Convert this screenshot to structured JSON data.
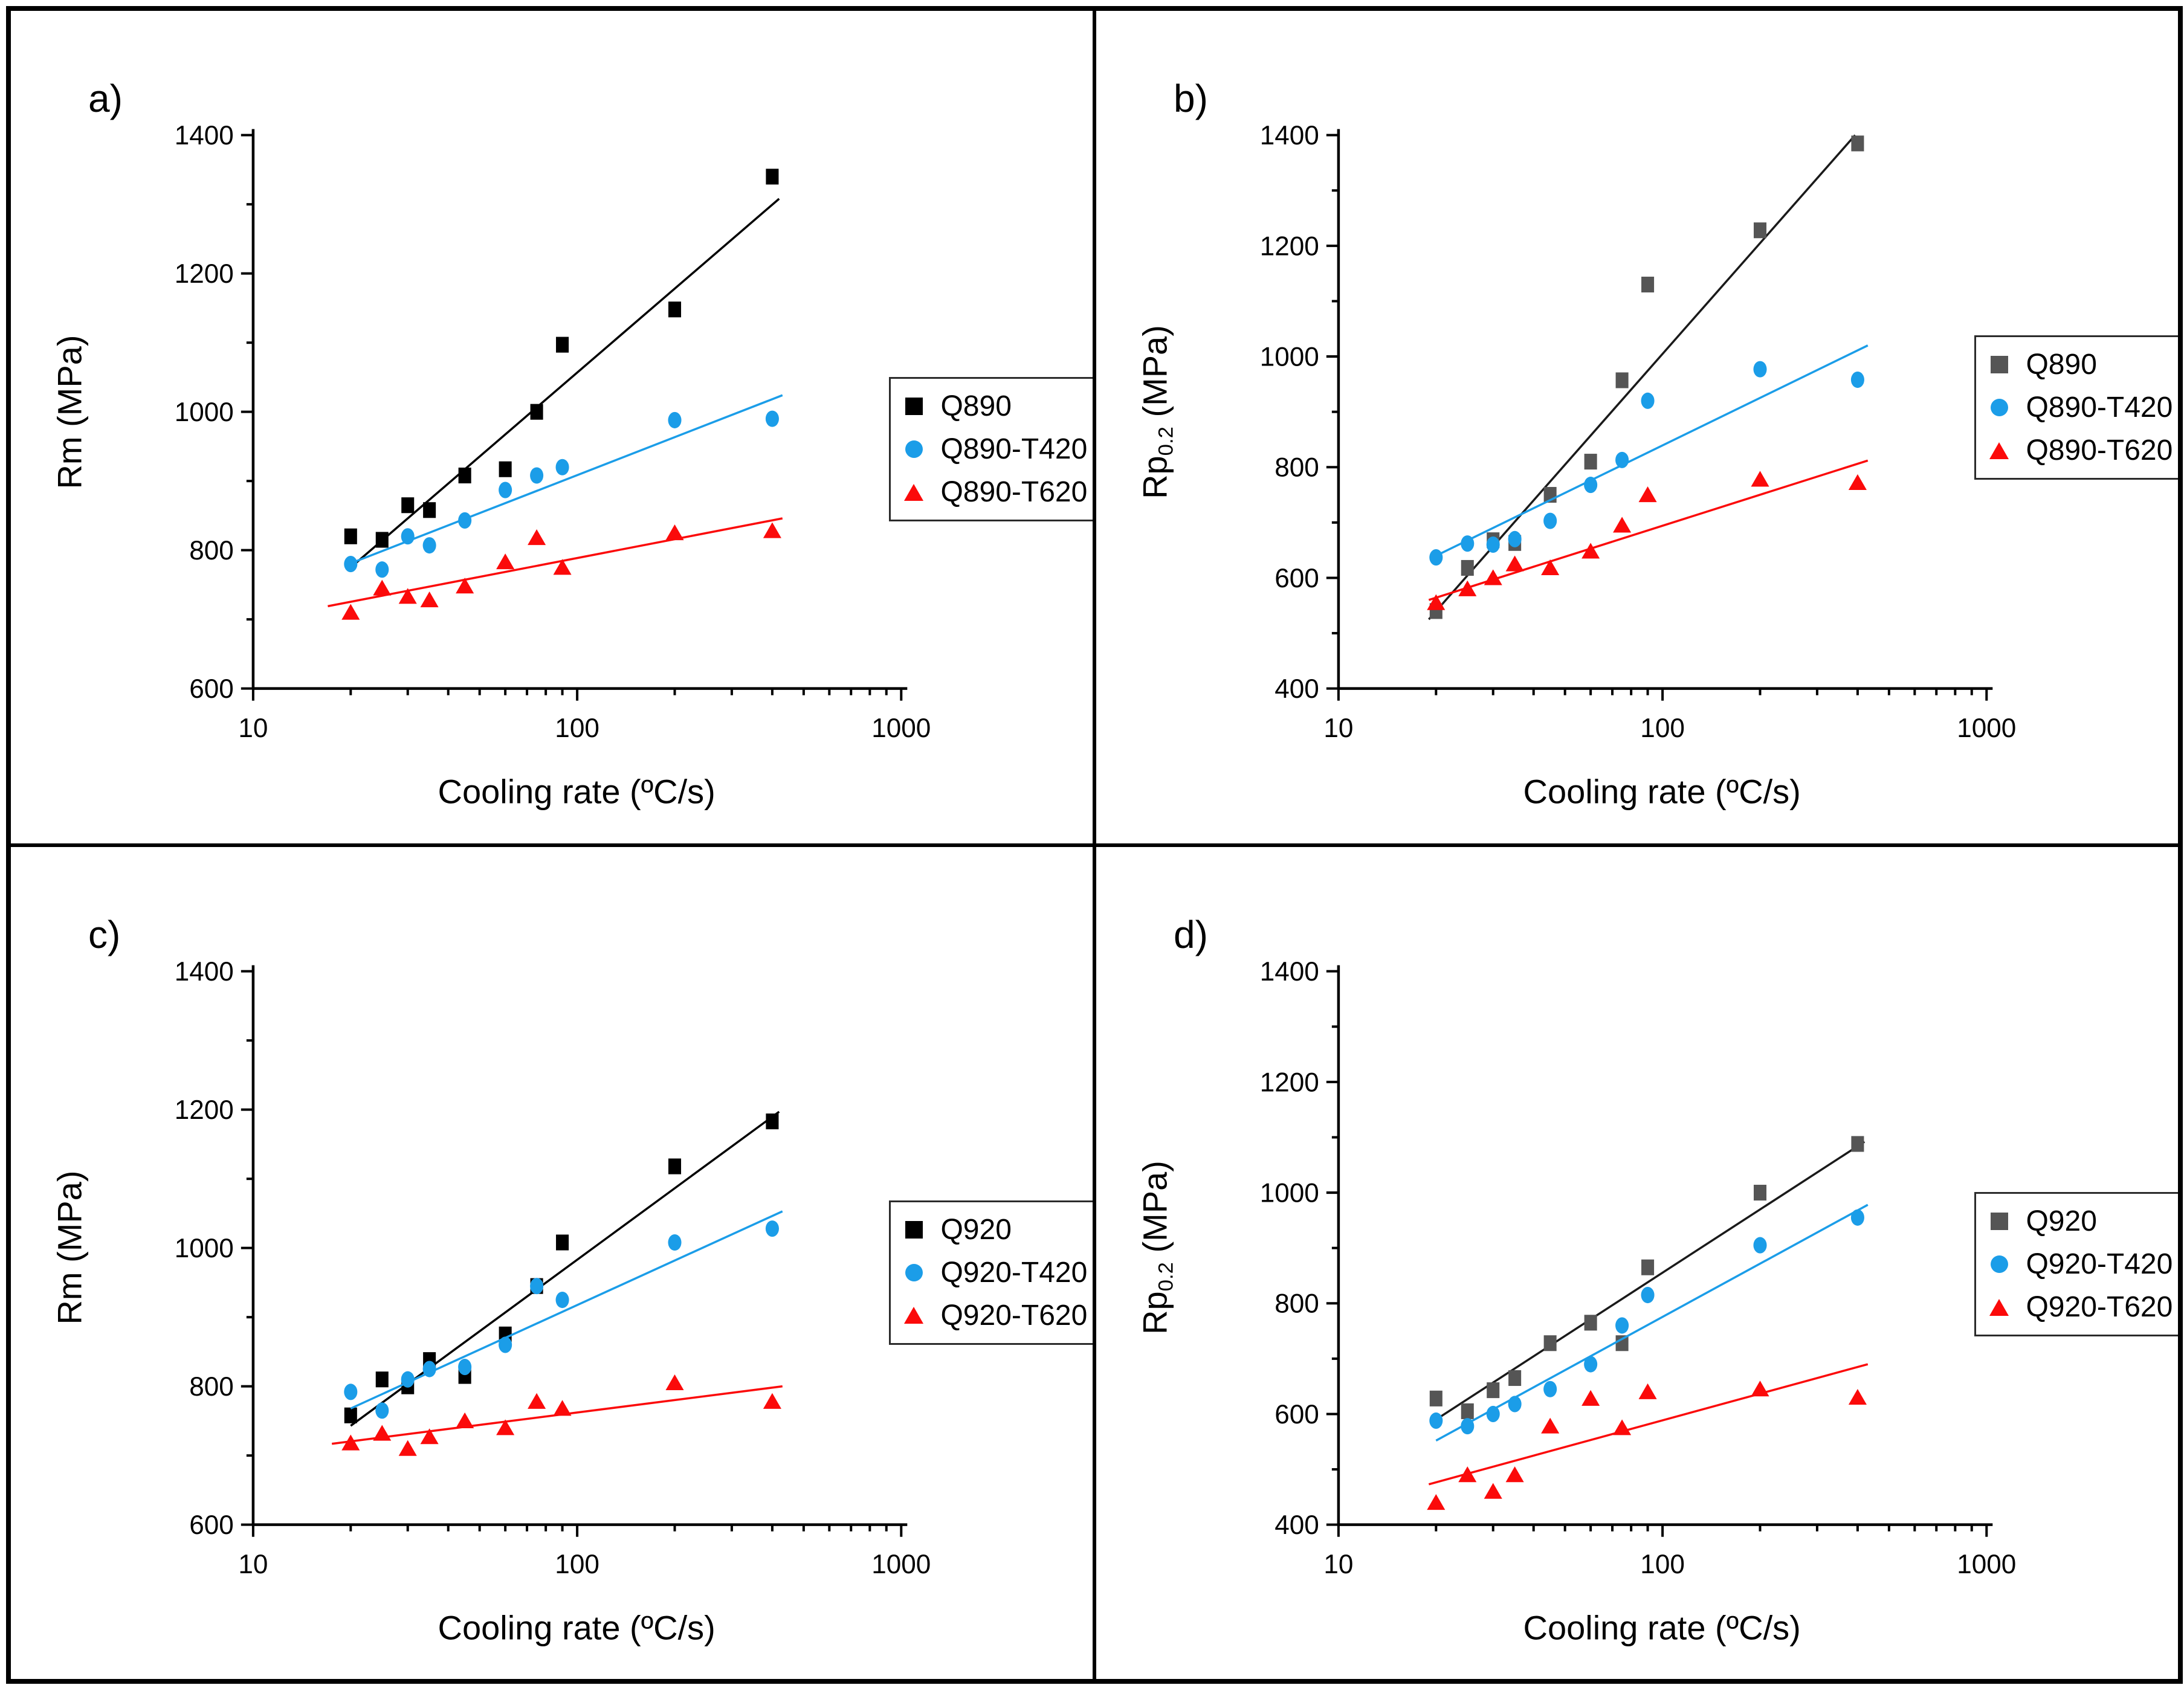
{
  "page": {
    "background": "#ffffff",
    "border_color": "#000000",
    "divider_color": "#000000"
  },
  "chart_data": [
    {
      "id": "a",
      "type": "scatter",
      "label": "a)",
      "xlabel": "Cooling rate (ºC/s)",
      "ylabel": {
        "prefix": "Rm",
        "sub": "",
        "suffix": " (MPa)"
      },
      "x_scale": "log",
      "xlim": [
        10,
        1000
      ],
      "x_ticks": [
        10,
        100,
        1000
      ],
      "ylim": [
        600,
        1400
      ],
      "y_ticks": [
        600,
        800,
        1000,
        1200,
        1400
      ],
      "grid": false,
      "legend_position": "right",
      "x": [
        20,
        25,
        30,
        35,
        45,
        60,
        75,
        90,
        200,
        400
      ],
      "series": [
        {
          "name": "Q890",
          "marker": "square",
          "color": "#000000",
          "line_color": "#000000",
          "values": [
            820,
            815,
            865,
            858,
            908,
            917,
            1000,
            1097,
            1148,
            1340
          ],
          "fit": {
            "x": [
              20,
              420
            ],
            "y": [
              775,
              1308
            ]
          }
        },
        {
          "name": "Q890-T420",
          "marker": "circle",
          "color": "#1b9de8",
          "line_color": "#1b9de8",
          "values": [
            780,
            772,
            820,
            807,
            843,
            887,
            908,
            920,
            988,
            990
          ],
          "fit": {
            "x": [
              20,
              430
            ],
            "y": [
              781,
              1024
            ]
          }
        },
        {
          "name": "Q890-T620",
          "marker": "triangle",
          "color": "#fb0a0a",
          "line_color": "#fb0a0a",
          "values": [
            710,
            745,
            733,
            728,
            748,
            783,
            818,
            775,
            825,
            828
          ],
          "fit": {
            "x": [
              17,
              430
            ],
            "y": [
              719,
              846
            ]
          }
        }
      ]
    },
    {
      "id": "b",
      "type": "scatter",
      "label": "b)",
      "xlabel": "Cooling rate (ºC/s)",
      "ylabel": {
        "prefix": "Rp",
        "sub": "0.2",
        "suffix": " (MPa)"
      },
      "x_scale": "log",
      "xlim": [
        10,
        1000
      ],
      "x_ticks": [
        10,
        100,
        1000
      ],
      "ylim": [
        400,
        1400
      ],
      "y_ticks": [
        400,
        600,
        800,
        1000,
        1200,
        1400
      ],
      "grid": false,
      "legend_position": "right",
      "x": [
        20,
        25,
        30,
        35,
        45,
        60,
        75,
        90,
        200,
        400
      ],
      "series": [
        {
          "name": "Q890",
          "marker": "square",
          "color": "#555555",
          "line_color": "#1a1a1a",
          "values": [
            540,
            618,
            668,
            663,
            750,
            810,
            957,
            1130,
            1228,
            1385
          ],
          "fit": {
            "x": [
              19,
              393
            ],
            "y": [
              525,
              1400
            ]
          }
        },
        {
          "name": "Q890-T420",
          "marker": "circle",
          "color": "#1b9de8",
          "line_color": "#1b9de8",
          "values": [
            637,
            662,
            660,
            670,
            703,
            768,
            813,
            920,
            977,
            958
          ],
          "fit": {
            "x": [
              20,
              430
            ],
            "y": [
              640,
              1020
            ]
          }
        },
        {
          "name": "Q890-T620",
          "marker": "triangle",
          "color": "#fb0a0a",
          "line_color": "#fb0a0a",
          "values": [
            555,
            580,
            600,
            625,
            618,
            648,
            695,
            750,
            778,
            772
          ],
          "fit": {
            "x": [
              19,
              430
            ],
            "y": [
              560,
              812
            ]
          }
        }
      ]
    },
    {
      "id": "c",
      "type": "scatter",
      "label": "c)",
      "xlabel": "Cooling rate (ºC/s)",
      "ylabel": {
        "prefix": "Rm",
        "sub": "",
        "suffix": " (MPa)"
      },
      "x_scale": "log",
      "xlim": [
        10,
        1000
      ],
      "x_ticks": [
        10,
        100,
        1000
      ],
      "ylim": [
        600,
        1400
      ],
      "y_ticks": [
        600,
        800,
        1000,
        1200,
        1400
      ],
      "grid": false,
      "legend_position": "right",
      "x": [
        20,
        25,
        30,
        35,
        45,
        60,
        75,
        90,
        200,
        400
      ],
      "series": [
        {
          "name": "Q920",
          "marker": "square",
          "color": "#000000",
          "line_color": "#000000",
          "values": [
            758,
            810,
            800,
            838,
            815,
            875,
            945,
            1008,
            1118,
            1183
          ],
          "fit": {
            "x": [
              20,
              420
            ],
            "y": [
              743,
              1197
            ]
          }
        },
        {
          "name": "Q920-T420",
          "marker": "circle",
          "color": "#1b9de8",
          "line_color": "#1b9de8",
          "values": [
            792,
            765,
            810,
            825,
            828,
            860,
            945,
            925,
            1008,
            1028
          ],
          "fit": {
            "x": [
              20,
              430
            ],
            "y": [
              768,
              1053
            ]
          }
        },
        {
          "name": "Q920-T620",
          "marker": "triangle",
          "color": "#fb0a0a",
          "line_color": "#fb0a0a",
          "values": [
            718,
            732,
            710,
            727,
            750,
            740,
            778,
            768,
            805,
            778
          ],
          "fit": {
            "x": [
              17.5,
              430
            ],
            "y": [
              717,
              800
            ]
          }
        }
      ]
    },
    {
      "id": "d",
      "type": "scatter",
      "label": "d)",
      "xlabel": "Cooling rate (ºC/s)",
      "ylabel": {
        "prefix": "Rp",
        "sub": "0.2",
        "suffix": " (MPa)"
      },
      "x_scale": "log",
      "xlim": [
        10,
        1000
      ],
      "x_ticks": [
        10,
        100,
        1000
      ],
      "ylim": [
        400,
        1400
      ],
      "y_ticks": [
        400,
        600,
        800,
        1000,
        1200,
        1400
      ],
      "grid": false,
      "legend_position": "right",
      "x": [
        20,
        25,
        30,
        35,
        45,
        60,
        75,
        90,
        200,
        400
      ],
      "series": [
        {
          "name": "Q920",
          "marker": "square",
          "color": "#555555",
          "line_color": "#1a1a1a",
          "values": [
            628,
            605,
            643,
            665,
            728,
            765,
            728,
            865,
            1000,
            1088
          ],
          "fit": {
            "x": [
              20,
              420
            ],
            "y": [
              590,
              1092
            ]
          }
        },
        {
          "name": "Q920-T420",
          "marker": "circle",
          "color": "#1b9de8",
          "line_color": "#1b9de8",
          "values": [
            588,
            578,
            600,
            618,
            645,
            690,
            760,
            815,
            905,
            955
          ],
          "fit": {
            "x": [
              20,
              430
            ],
            "y": [
              552,
              978
            ]
          }
        },
        {
          "name": "Q920-T620",
          "marker": "triangle",
          "color": "#fb0a0a",
          "line_color": "#fb0a0a",
          "values": [
            440,
            490,
            460,
            490,
            578,
            628,
            575,
            640,
            645,
            630
          ],
          "fit": {
            "x": [
              19,
              430
            ],
            "y": [
              473,
              690
            ]
          }
        }
      ]
    }
  ]
}
